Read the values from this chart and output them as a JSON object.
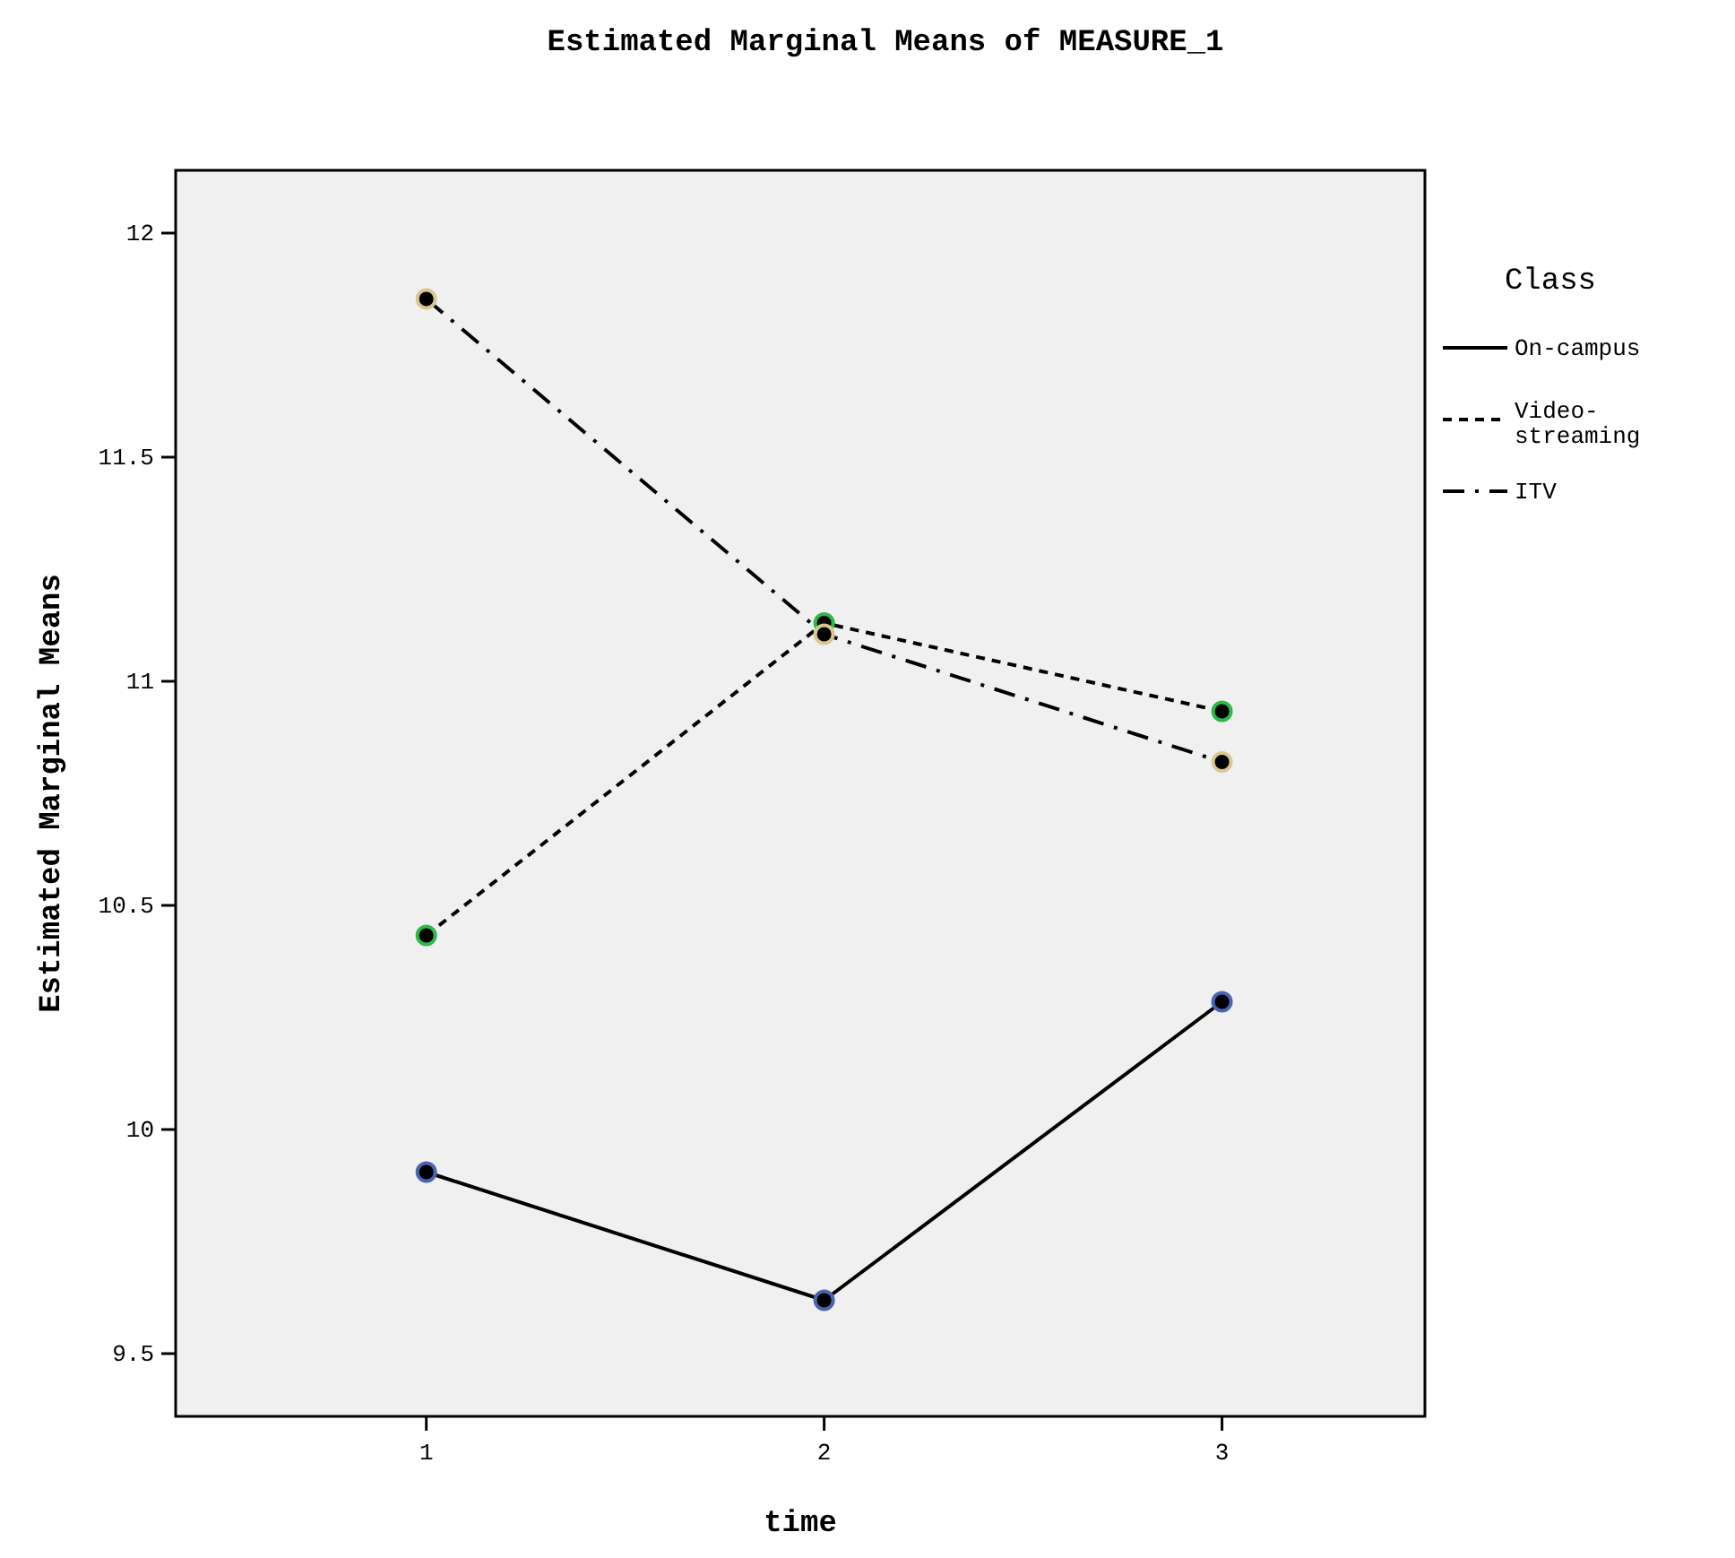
{
  "chart_data": {
    "type": "line",
    "title": "Estimated Marginal Means of MEASURE_1",
    "xlabel": "time",
    "ylabel": "Estimated Marginal Means",
    "legend_title": "Class",
    "legend": "right",
    "marker": "circle",
    "grid": false,
    "x": [
      1,
      2,
      3
    ],
    "xlim": [
      0.37,
      3.51
    ],
    "xticks": [
      1,
      2,
      3
    ],
    "ylim": [
      9.36,
      12.14
    ],
    "yticks": [
      {
        "value": 9.5,
        "label": "9.5"
      },
      10,
      {
        "value": 10.5,
        "label": "10.5"
      },
      11,
      {
        "value": 11.5,
        "label": "11.5"
      },
      12
    ],
    "series": [
      {
        "name": "On-campus",
        "color": "#4a64b0",
        "line_style": "solid",
        "values": [
          9.905,
          9.619,
          10.285
        ]
      },
      {
        "name": "Video-streaming",
        "color": "#2eb84a",
        "line_style": "dashed",
        "values": [
          10.433,
          11.13,
          10.933
        ]
      },
      {
        "name": "ITV",
        "color": "#d8c890",
        "line_style": "dashdot",
        "values": [
          11.853,
          11.105,
          10.82
        ]
      }
    ]
  }
}
